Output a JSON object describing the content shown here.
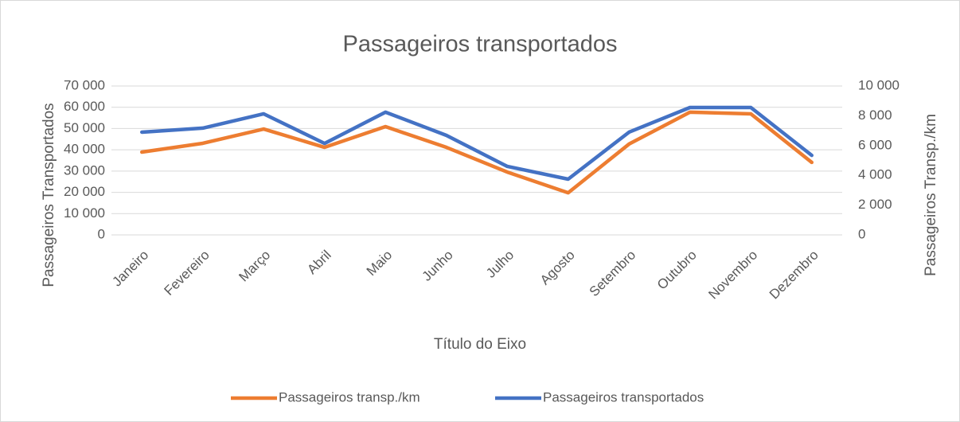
{
  "chart_data": {
    "type": "line",
    "title": "Passageiros transportados",
    "x_label": "Título do Eixo",
    "y_label": "Passageiros Transportados",
    "y2_label": "Passageiros Transp./km",
    "categories": [
      "Janeiro",
      "Fevereiro",
      "Março",
      "Abril",
      "Maio",
      "Junho",
      "Julho",
      "Agosto",
      "Setembro",
      "Outubro",
      "Novembro",
      "Dezembro"
    ],
    "series": [
      {
        "name": "Passageiros transp./km",
        "color": "#ed7d31",
        "axis": "y2",
        "values": [
          5560,
          6150,
          7110,
          5880,
          7270,
          5880,
          4220,
          2830,
          6100,
          8240,
          8130,
          4870
        ]
      },
      {
        "name": "Passageiros transportados",
        "color": "#4472c4",
        "values": [
          48300,
          50200,
          56900,
          43000,
          57700,
          46800,
          32200,
          26200,
          48300,
          59900,
          59900,
          37400
        ]
      }
    ],
    "ylim": [
      0,
      70000
    ],
    "yticks": [
      0,
      {
        "value": 10000,
        "label": "10 000"
      },
      {
        "value": 20000,
        "label": "20 000"
      },
      {
        "value": 30000,
        "label": "30 000"
      },
      {
        "value": 40000,
        "label": "40 000"
      },
      {
        "value": 50000,
        "label": "50 000"
      },
      {
        "value": 60000,
        "label": "60 000"
      },
      {
        "value": 70000,
        "label": "70 000"
      }
    ],
    "y2lim": [
      0,
      10000
    ],
    "y2ticks": [
      0,
      {
        "value": 2000,
        "label": "2 000"
      },
      {
        "value": 4000,
        "label": "4 000"
      },
      {
        "value": 6000,
        "label": "6 000"
      },
      {
        "value": 8000,
        "label": "8 000"
      },
      {
        "value": 10000,
        "label": "10 000"
      }
    ],
    "grid": true,
    "legend": "bottom"
  }
}
